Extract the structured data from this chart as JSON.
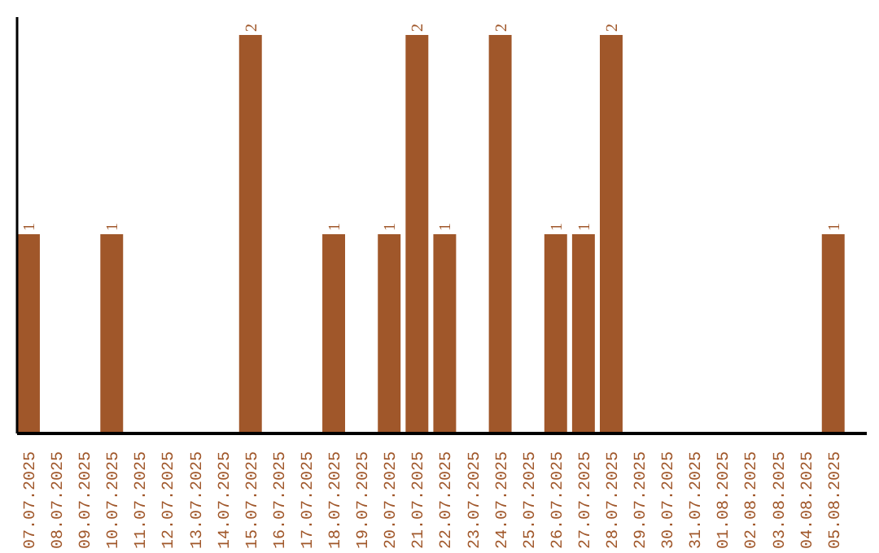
{
  "chart_data": {
    "type": "bar",
    "categories": [
      "07.07.2025",
      "08.07.2025",
      "09.07.2025",
      "10.07.2025",
      "11.07.2025",
      "12.07.2025",
      "13.07.2025",
      "14.07.2025",
      "15.07.2025",
      "16.07.2025",
      "17.07.2025",
      "18.07.2025",
      "19.07.2025",
      "20.07.2025",
      "21.07.2025",
      "22.07.2025",
      "23.07.2025",
      "24.07.2025",
      "25.07.2025",
      "26.07.2025",
      "27.07.2025",
      "28.07.2025",
      "29.07.2025",
      "30.07.2025",
      "31.07.2025",
      "01.08.2025",
      "02.08.2025",
      "03.08.2025",
      "04.08.2025",
      "05.08.2025"
    ],
    "values": [
      1,
      0,
      0,
      1,
      0,
      0,
      0,
      0,
      2,
      0,
      0,
      1,
      0,
      1,
      2,
      1,
      0,
      2,
      0,
      1,
      1,
      2,
      0,
      0,
      0,
      0,
      0,
      0,
      0,
      1
    ],
    "value_labels": [
      "1",
      null,
      null,
      "1",
      null,
      null,
      null,
      null,
      "2",
      null,
      null,
      "1",
      null,
      "1",
      "2",
      "1",
      null,
      "2",
      null,
      "1",
      "1",
      "2",
      null,
      null,
      null,
      null,
      null,
      null,
      null,
      "1"
    ],
    "color": "#a0572a",
    "ylim": [
      0,
      2
    ],
    "tick_labels": "x",
    "grid": false
  }
}
